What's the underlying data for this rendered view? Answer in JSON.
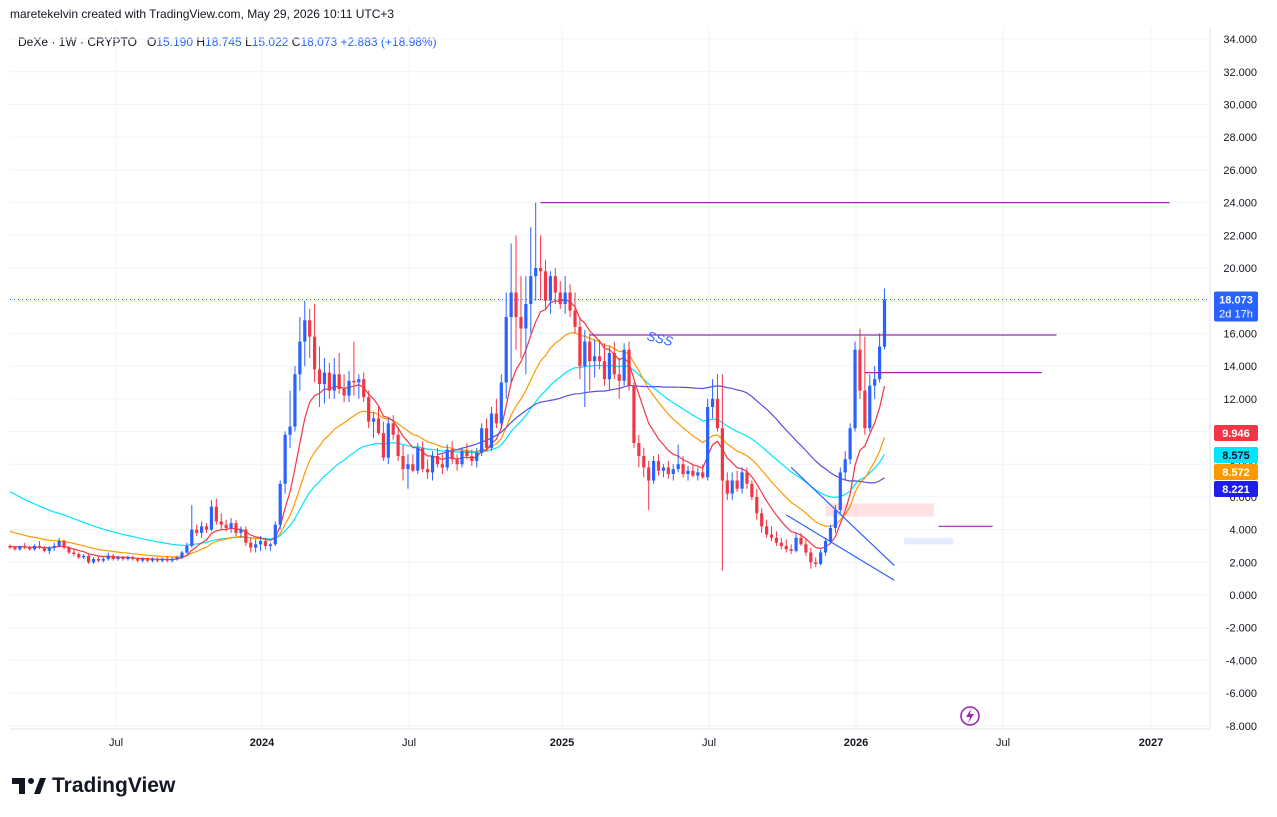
{
  "header": {
    "credit": "maretekelvin created with TradingView.com, May 29, 2026 10:11 UTC+3"
  },
  "legend": {
    "symbol": "DeXe · 1W · CRYPTO",
    "o_label": "O",
    "o": "15.190",
    "h_label": "H",
    "h": "18.745",
    "l_label": "L",
    "l": "15.022",
    "c_label": "C",
    "c": "18.073",
    "change": "+2.883 (+18.98%)"
  },
  "footer": {
    "brand": "TradingView"
  },
  "annotation": {
    "sss": "SSS"
  },
  "chart_data": {
    "type": "candlestick",
    "y_ticks": [
      "34.000",
      "32.000",
      "30.000",
      "28.000",
      "26.000",
      "24.000",
      "22.000",
      "20.000",
      "18.000",
      "16.000",
      "14.000",
      "12.000",
      "10.000",
      "8.000",
      "6.000",
      "4.000",
      "2.000",
      "0.000",
      "-2.000",
      "-4.000",
      "-6.000",
      "-8.000"
    ],
    "y_tick_values": [
      34,
      32,
      30,
      28,
      26,
      24,
      22,
      20,
      18,
      16,
      14,
      12,
      10,
      8,
      6,
      4,
      2,
      0,
      -2,
      -4,
      -6,
      -8
    ],
    "x_labels": [
      "Jul",
      "2024",
      "Jul",
      "2025",
      "Jul",
      "2026",
      "Jul",
      "2027"
    ],
    "ylim": [
      -8.2,
      34.7
    ],
    "last_price": {
      "value": 18.073,
      "label": "18.073",
      "countdown": "2d 17h",
      "color": "#2962ff"
    },
    "ma_labels": [
      {
        "value": 9.946,
        "label": "9.946",
        "color": "#f23645"
      },
      {
        "value": 8.575,
        "label": "8.575",
        "color": "#00e5ff"
      },
      {
        "value": 8.572,
        "label": "8.572",
        "color": "#ff9800"
      },
      {
        "value": 8.221,
        "label": "8.221",
        "color": "#1e1ee8"
      }
    ],
    "colors": {
      "up": "#2962ff",
      "down": "#f23645",
      "ma_red": "#f23645",
      "ma_orange": "#ff9800",
      "ma_cyan": "#00e5ff",
      "ma_blue": "#5b4fe0",
      "lines": "#9c27b0"
    },
    "grid": true,
    "candles": [
      [
        3.0,
        3.1,
        2.8,
        2.9
      ],
      [
        2.9,
        3.0,
        2.7,
        2.8
      ],
      [
        2.8,
        3.0,
        2.7,
        3.0
      ],
      [
        3.0,
        3.2,
        2.8,
        2.9
      ],
      [
        2.9,
        3.0,
        2.7,
        2.8
      ],
      [
        2.8,
        3.1,
        2.7,
        3.0
      ],
      [
        3.0,
        3.3,
        2.8,
        2.9
      ],
      [
        2.9,
        3.0,
        2.6,
        2.7
      ],
      [
        2.7,
        3.0,
        2.5,
        2.9
      ],
      [
        2.9,
        3.2,
        2.7,
        3.0
      ],
      [
        3.0,
        3.5,
        2.9,
        3.3
      ],
      [
        3.3,
        3.4,
        2.8,
        2.9
      ],
      [
        2.9,
        3.0,
        2.5,
        2.6
      ],
      [
        2.6,
        2.8,
        2.4,
        2.5
      ],
      [
        2.5,
        2.6,
        2.2,
        2.3
      ],
      [
        2.3,
        2.5,
        2.2,
        2.4
      ],
      [
        2.4,
        2.5,
        1.9,
        2.0
      ],
      [
        2.0,
        2.3,
        1.9,
        2.2
      ],
      [
        2.2,
        2.4,
        2.0,
        2.1
      ],
      [
        2.1,
        2.3,
        2.0,
        2.2
      ],
      [
        2.2,
        2.6,
        2.1,
        2.4
      ],
      [
        2.4,
        2.5,
        2.1,
        2.2
      ],
      [
        2.2,
        2.4,
        2.1,
        2.3
      ],
      [
        2.3,
        2.4,
        2.1,
        2.2
      ],
      [
        2.2,
        2.4,
        2.1,
        2.3
      ],
      [
        2.3,
        2.4,
        2.1,
        2.2
      ],
      [
        2.2,
        2.3,
        2.0,
        2.1
      ],
      [
        2.1,
        2.3,
        2.0,
        2.2
      ],
      [
        2.2,
        2.3,
        2.0,
        2.1
      ],
      [
        2.1,
        2.3,
        2.0,
        2.2
      ],
      [
        2.2,
        2.3,
        2.0,
        2.1
      ],
      [
        2.1,
        2.3,
        2.0,
        2.2
      ],
      [
        2.2,
        2.4,
        2.0,
        2.1
      ],
      [
        2.1,
        2.3,
        2.0,
        2.2
      ],
      [
        2.2,
        2.4,
        2.1,
        2.3
      ],
      [
        2.3,
        2.7,
        2.2,
        2.6
      ],
      [
        2.6,
        3.2,
        2.5,
        3.0
      ],
      [
        3.0,
        5.5,
        2.9,
        4.0
      ],
      [
        4.0,
        4.3,
        3.6,
        3.8
      ],
      [
        3.8,
        4.5,
        3.5,
        4.2
      ],
      [
        4.2,
        4.4,
        3.8,
        4.0
      ],
      [
        4.0,
        5.8,
        3.9,
        5.4
      ],
      [
        5.4,
        5.9,
        4.3,
        4.5
      ],
      [
        4.5,
        5.0,
        4.0,
        4.3
      ],
      [
        4.3,
        4.6,
        3.9,
        4.1
      ],
      [
        4.1,
        4.7,
        3.8,
        4.4
      ],
      [
        4.4,
        4.6,
        3.6,
        3.8
      ],
      [
        3.8,
        4.2,
        3.5,
        4.0
      ],
      [
        4.0,
        4.2,
        3.0,
        3.2
      ],
      [
        3.2,
        3.5,
        2.6,
        2.9
      ],
      [
        2.9,
        3.4,
        2.6,
        3.1
      ],
      [
        3.1,
        3.6,
        2.7,
        3.3
      ],
      [
        3.3,
        3.5,
        2.8,
        3.0
      ],
      [
        3.0,
        3.2,
        2.7,
        3.1
      ],
      [
        3.1,
        4.5,
        3.0,
        4.3
      ],
      [
        4.3,
        7.0,
        4.0,
        6.8
      ],
      [
        6.8,
        10.0,
        6.2,
        9.8
      ],
      [
        9.8,
        12.5,
        9.0,
        10.3
      ],
      [
        10.3,
        14.0,
        10.0,
        13.5
      ],
      [
        13.5,
        17.0,
        12.5,
        15.5
      ],
      [
        15.5,
        18.0,
        14.0,
        16.8
      ],
      [
        16.8,
        17.5,
        14.5,
        15.8
      ],
      [
        15.8,
        17.8,
        13.0,
        13.8
      ],
      [
        13.8,
        15.2,
        11.5,
        12.9
      ],
      [
        12.9,
        14.5,
        11.7,
        13.6
      ],
      [
        13.6,
        14.2,
        12.0,
        12.5
      ],
      [
        12.5,
        14.5,
        12.0,
        13.5
      ],
      [
        13.5,
        14.8,
        12.3,
        12.6
      ],
      [
        12.6,
        13.5,
        11.8,
        12.2
      ],
      [
        12.2,
        13.7,
        11.8,
        13.1
      ],
      [
        13.1,
        15.5,
        12.2,
        13.0
      ],
      [
        13.0,
        13.5,
        12.0,
        13.2
      ],
      [
        13.2,
        13.6,
        11.8,
        12.1
      ],
      [
        12.1,
        12.5,
        10.2,
        10.6
      ],
      [
        10.6,
        11.2,
        9.6,
        10.8
      ],
      [
        10.8,
        11.5,
        9.8,
        9.9
      ],
      [
        9.9,
        10.6,
        8.2,
        8.4
      ],
      [
        8.4,
        10.8,
        8.0,
        10.5
      ],
      [
        10.5,
        11.0,
        9.5,
        9.8
      ],
      [
        9.8,
        10.2,
        8.2,
        8.5
      ],
      [
        8.5,
        9.2,
        7.0,
        7.7
      ],
      [
        7.7,
        8.6,
        6.5,
        8.0
      ],
      [
        8.0,
        8.6,
        7.5,
        7.6
      ],
      [
        7.6,
        9.3,
        7.4,
        9.0
      ],
      [
        9.0,
        9.4,
        7.5,
        7.7
      ],
      [
        7.7,
        8.3,
        7.1,
        7.5
      ],
      [
        7.5,
        8.8,
        7.0,
        8.5
      ],
      [
        8.5,
        9.0,
        7.8,
        8.0
      ],
      [
        8.0,
        8.6,
        7.4,
        7.8
      ],
      [
        7.8,
        9.2,
        7.6,
        8.9
      ],
      [
        8.9,
        9.4,
        8.0,
        8.3
      ],
      [
        8.3,
        8.6,
        7.6,
        8.0
      ],
      [
        8.0,
        9.0,
        7.8,
        8.8
      ],
      [
        8.8,
        9.3,
        8.3,
        8.5
      ],
      [
        8.5,
        8.9,
        7.9,
        8.2
      ],
      [
        8.2,
        9.0,
        7.8,
        8.7
      ],
      [
        8.7,
        10.5,
        8.5,
        10.2
      ],
      [
        10.2,
        10.8,
        8.9,
        9.0
      ],
      [
        9.0,
        11.5,
        8.8,
        11.1
      ],
      [
        11.1,
        12.0,
        10.2,
        10.5
      ],
      [
        10.5,
        13.5,
        10.2,
        13.0
      ],
      [
        13.0,
        18.5,
        12.0,
        17.0
      ],
      [
        17.0,
        21.5,
        13.0,
        18.5
      ],
      [
        18.5,
        22.0,
        15.0,
        17.0
      ],
      [
        17.0,
        19.5,
        14.5,
        16.3
      ],
      [
        16.3,
        19.5,
        13.5,
        17.8
      ],
      [
        17.8,
        22.5,
        16.0,
        19.5
      ],
      [
        19.5,
        24.0,
        18.0,
        20.0
      ],
      [
        20.0,
        22.0,
        18.0,
        19.8
      ],
      [
        19.8,
        20.5,
        17.5,
        18.0
      ],
      [
        18.0,
        19.8,
        17.2,
        19.5
      ],
      [
        19.5,
        20.0,
        17.8,
        18.5
      ],
      [
        18.5,
        19.2,
        17.5,
        17.8
      ],
      [
        17.8,
        19.5,
        17.2,
        18.5
      ],
      [
        18.5,
        19.0,
        17.0,
        17.4
      ],
      [
        17.4,
        18.5,
        16.0,
        16.4
      ],
      [
        16.4,
        17.0,
        13.2,
        14.0
      ],
      [
        14.0,
        16.2,
        11.5,
        15.5
      ],
      [
        15.5,
        16.0,
        12.5,
        14.3
      ],
      [
        14.3,
        15.6,
        13.3,
        14.6
      ],
      [
        14.6,
        15.6,
        13.8,
        14.3
      ],
      [
        14.3,
        15.4,
        12.8,
        13.2
      ],
      [
        13.2,
        15.2,
        12.5,
        14.8
      ],
      [
        14.8,
        15.5,
        13.2,
        13.5
      ],
      [
        13.5,
        14.5,
        12.0,
        13.1
      ],
      [
        13.1,
        15.4,
        12.8,
        15.0
      ],
      [
        15.0,
        15.5,
        12.5,
        12.8
      ],
      [
        12.8,
        13.0,
        9.0,
        9.3
      ],
      [
        9.3,
        9.8,
        7.8,
        8.5
      ],
      [
        8.5,
        9.0,
        7.2,
        7.8
      ],
      [
        7.8,
        8.2,
        5.2,
        7.0
      ],
      [
        7.0,
        8.5,
        6.8,
        8.2
      ],
      [
        8.2,
        8.6,
        7.3,
        7.6
      ],
      [
        7.6,
        8.0,
        7.2,
        7.8
      ],
      [
        7.8,
        8.2,
        7.1,
        7.4
      ],
      [
        7.4,
        8.0,
        7.0,
        7.7
      ],
      [
        7.7,
        9.2,
        7.5,
        8.0
      ],
      [
        8.0,
        8.5,
        7.2,
        7.4
      ],
      [
        7.4,
        7.9,
        7.0,
        7.6
      ],
      [
        7.6,
        8.0,
        7.2,
        7.3
      ],
      [
        7.3,
        7.8,
        7.0,
        7.5
      ],
      [
        7.5,
        8.0,
        7.1,
        7.2
      ],
      [
        7.2,
        12.0,
        7.0,
        11.5
      ],
      [
        11.5,
        13.2,
        10.8,
        12.0
      ],
      [
        12.0,
        13.5,
        10.0,
        10.2
      ],
      [
        10.2,
        13.5,
        1.5,
        7.0
      ],
      [
        7.0,
        7.5,
        5.8,
        6.2
      ],
      [
        6.2,
        7.5,
        5.8,
        7.0
      ],
      [
        7.0,
        7.6,
        6.3,
        6.5
      ],
      [
        6.5,
        7.8,
        6.2,
        7.5
      ],
      [
        7.5,
        7.8,
        6.5,
        6.8
      ],
      [
        6.8,
        7.0,
        5.8,
        6.0
      ],
      [
        6.0,
        6.5,
        4.6,
        5.0
      ],
      [
        5.0,
        5.3,
        3.8,
        4.2
      ],
      [
        4.2,
        4.6,
        3.5,
        3.7
      ],
      [
        3.7,
        4.2,
        3.3,
        3.5
      ],
      [
        3.5,
        3.9,
        3.0,
        3.2
      ],
      [
        3.2,
        3.5,
        2.8,
        3.0
      ],
      [
        3.0,
        3.4,
        2.6,
        2.8
      ],
      [
        2.8,
        3.1,
        2.5,
        2.7
      ],
      [
        2.7,
        3.8,
        2.6,
        3.5
      ],
      [
        3.5,
        3.8,
        3.0,
        3.1
      ],
      [
        3.1,
        3.4,
        2.4,
        2.6
      ],
      [
        2.6,
        2.9,
        1.6,
        2.0
      ],
      [
        2.0,
        2.3,
        1.7,
        1.9
      ],
      [
        1.9,
        2.8,
        1.8,
        2.6
      ],
      [
        2.6,
        3.5,
        2.4,
        3.3
      ],
      [
        3.3,
        4.3,
        3.1,
        4.1
      ],
      [
        4.1,
        5.5,
        3.8,
        5.2
      ],
      [
        5.2,
        7.8,
        5.0,
        7.5
      ],
      [
        7.5,
        8.8,
        7.0,
        8.3
      ],
      [
        8.3,
        10.5,
        8.0,
        10.2
      ],
      [
        10.2,
        15.5,
        10.0,
        15.0
      ],
      [
        15.0,
        16.3,
        12.0,
        12.5
      ],
      [
        12.5,
        15.8,
        9.8,
        10.2
      ],
      [
        10.2,
        13.5,
        10.0,
        12.8
      ],
      [
        12.8,
        14.0,
        12.0,
        13.2
      ],
      [
        13.2,
        16.0,
        13.0,
        15.2
      ],
      [
        15.19,
        18.745,
        15.022,
        18.073
      ]
    ],
    "lines": [
      {
        "name": "resistance-24",
        "points": [
          [
            108,
            24.0
          ],
          [
            236,
            24.0
          ]
        ]
      },
      {
        "name": "resistance-16",
        "points": [
          [
            118,
            15.9
          ],
          [
            213,
            15.9
          ]
        ]
      },
      {
        "name": "resistance-13-6",
        "points": [
          [
            174,
            13.6
          ],
          [
            210,
            13.6
          ]
        ]
      },
      {
        "name": "level-4-2",
        "points": [
          [
            189,
            4.2
          ],
          [
            200,
            4.2
          ]
        ]
      }
    ]
  }
}
